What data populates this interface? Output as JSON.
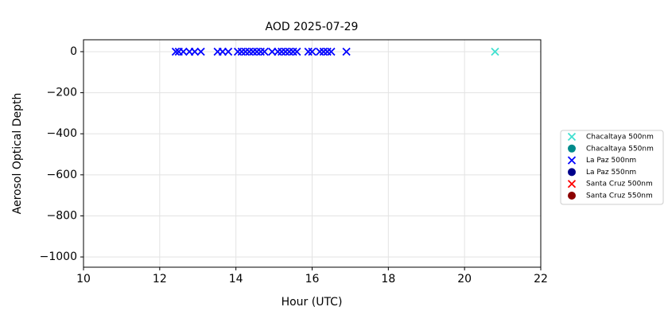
{
  "chart_data": {
    "type": "scatter",
    "title": "AOD 2025-07-29",
    "x_label": "Hour (UTC)",
    "y_label": "Aerosol Optical Depth",
    "xlim": [
      10,
      22
    ],
    "xticks": [
      10,
      12,
      14,
      16,
      18,
      20,
      22
    ],
    "ylim": [
      -1050,
      58
    ],
    "yticks": [
      {
        "value": -1000,
        "label": "−1000"
      },
      {
        "value": -800,
        "label": "−800"
      },
      {
        "value": -600,
        "label": "−600"
      },
      {
        "value": -400,
        "label": "−400"
      },
      {
        "value": -200,
        "label": "−200"
      },
      0
    ],
    "grid": true,
    "legend": "outside-right",
    "series": [
      {
        "name": "Chacaltaya 500nm",
        "color": "#40e0d0",
        "marker": "x",
        "x": [
          20.8
        ],
        "values": [
          0
        ]
      },
      {
        "name": "Chacaltaya 550nm",
        "color": "#008b8b",
        "marker": "o",
        "x": [],
        "values": []
      },
      {
        "name": "La Paz 500nm",
        "color": "#0000ff",
        "marker": "x",
        "x": [
          12.42,
          12.5,
          12.62,
          12.78,
          12.92,
          13.08,
          13.52,
          13.65,
          13.8,
          14.05,
          14.15,
          14.25,
          14.35,
          14.45,
          14.55,
          14.65,
          14.75,
          14.95,
          15.1,
          15.2,
          15.3,
          15.4,
          15.5,
          15.6,
          15.9,
          16.0,
          16.2,
          16.3,
          16.4,
          16.5,
          16.9
        ],
        "values": [
          0,
          0,
          0,
          0,
          0,
          0,
          0,
          0,
          0,
          0,
          0,
          0,
          0,
          0,
          0,
          0,
          0,
          0,
          0,
          0,
          0,
          0,
          0,
          0,
          0,
          0,
          0,
          0,
          0,
          0,
          0
        ]
      },
      {
        "name": "La Paz 550nm",
        "color": "#00008b",
        "marker": "o",
        "x": [],
        "values": []
      },
      {
        "name": "Santa Cruz 500nm",
        "color": "#ff0000",
        "marker": "x",
        "x": [],
        "values": []
      },
      {
        "name": "Santa Cruz 550nm",
        "color": "#8b0000",
        "marker": "o",
        "x": [],
        "values": []
      }
    ]
  }
}
